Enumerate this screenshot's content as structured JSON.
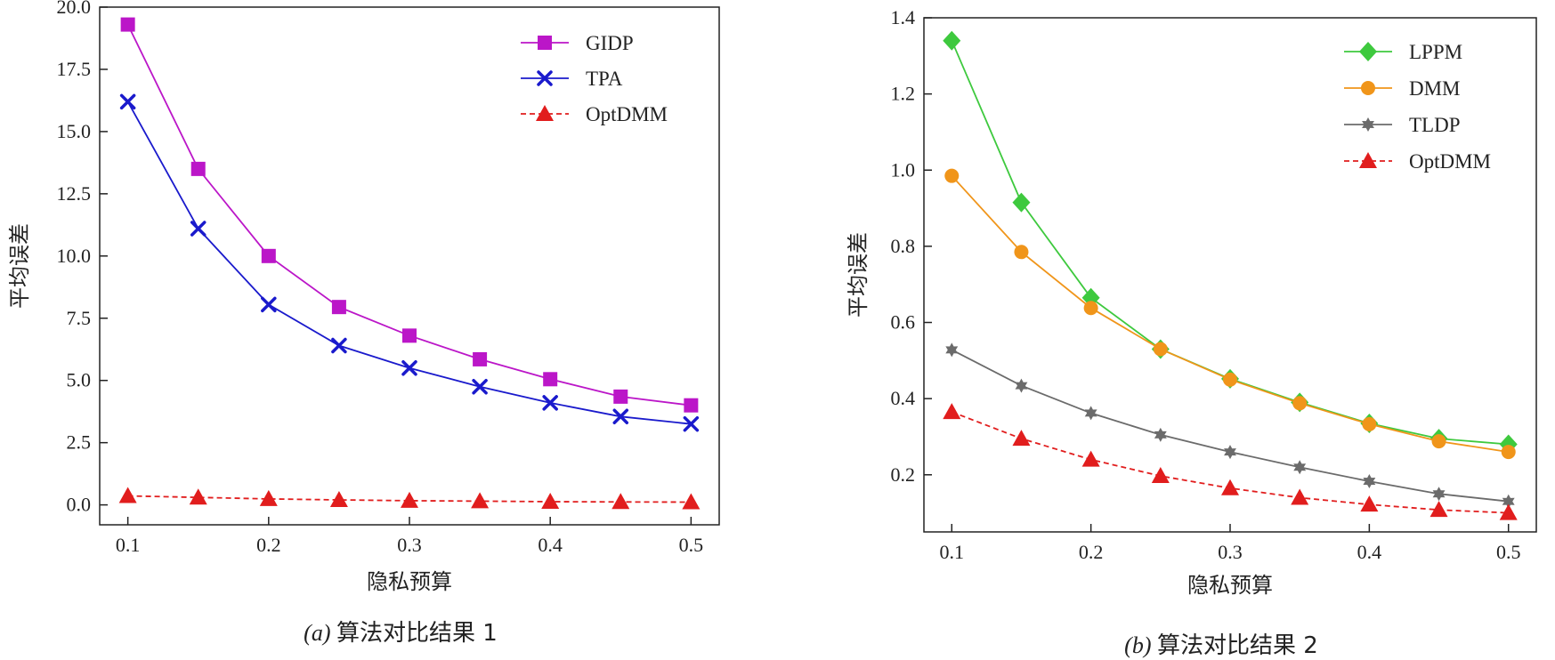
{
  "chart_data": [
    {
      "type": "line",
      "caption_prefix": "(a)",
      "caption_text": "算法对比结果 1",
      "xlabel": "隐私预算",
      "ylabel": "平均误差",
      "x": [
        0.1,
        0.15,
        0.2,
        0.25,
        0.3,
        0.35,
        0.4,
        0.45,
        0.5
      ],
      "xlim": [
        0.08,
        0.52
      ],
      "ylim": [
        -0.8,
        20.0
      ],
      "xticks": [
        0.1,
        0.2,
        0.3,
        0.4,
        0.5
      ],
      "xtick_labels": [
        "0.1",
        "0.2",
        "0.3",
        "0.4",
        "0.5"
      ],
      "yticks": [
        0.0,
        2.5,
        5.0,
        7.5,
        10.0,
        12.5,
        15.0,
        17.5,
        20.0
      ],
      "ytick_labels": [
        "0.0",
        "2.5",
        "5.0",
        "7.5",
        "10.0",
        "12.5",
        "15.0",
        "17.5",
        "20.0"
      ],
      "grid": false,
      "legend_position": "top-right",
      "series": [
        {
          "name": "GIDP",
          "color": "#bb16c8",
          "marker": "square",
          "dash": "solid",
          "values": [
            19.3,
            13.5,
            10.0,
            7.95,
            6.8,
            5.85,
            5.05,
            4.35,
            4.0
          ]
        },
        {
          "name": "TPA",
          "color": "#1a1acc",
          "marker": "x",
          "dash": "solid",
          "values": [
            16.2,
            11.1,
            8.05,
            6.4,
            5.5,
            4.75,
            4.1,
            3.55,
            3.25
          ]
        },
        {
          "name": "OptDMM",
          "color": "#e11d1d",
          "marker": "triangle",
          "dash": "dashed",
          "values": [
            0.36,
            0.3,
            0.24,
            0.2,
            0.17,
            0.15,
            0.13,
            0.12,
            0.11
          ]
        }
      ]
    },
    {
      "type": "line",
      "caption_prefix": "(b)",
      "caption_text": "算法对比结果 2",
      "xlabel": "隐私预算",
      "ylabel": "平均误差",
      "x": [
        0.1,
        0.15,
        0.2,
        0.25,
        0.3,
        0.35,
        0.4,
        0.45,
        0.5
      ],
      "xlim": [
        0.08,
        0.52
      ],
      "ylim": [
        0.05,
        1.4
      ],
      "xticks": [
        0.1,
        0.2,
        0.3,
        0.4,
        0.5
      ],
      "xtick_labels": [
        "0.1",
        "0.2",
        "0.3",
        "0.4",
        "0.5"
      ],
      "yticks": [
        0.2,
        0.4,
        0.6,
        0.8,
        1.0,
        1.2,
        1.4
      ],
      "ytick_labels": [
        "0.2",
        "0.4",
        "0.6",
        "0.8",
        "1.0",
        "1.2",
        "1.4"
      ],
      "grid": false,
      "legend_position": "top-right",
      "series": [
        {
          "name": "LPPM",
          "color": "#3ec93e",
          "marker": "diamond",
          "dash": "solid",
          "values": [
            1.34,
            0.915,
            0.665,
            0.53,
            0.452,
            0.39,
            0.335,
            0.295,
            0.28
          ]
        },
        {
          "name": "DMM",
          "color": "#f0951a",
          "marker": "circle",
          "dash": "solid",
          "values": [
            0.985,
            0.785,
            0.638,
            0.53,
            0.45,
            0.388,
            0.333,
            0.288,
            0.26
          ]
        },
        {
          "name": "TLDP",
          "color": "#6b6b6b",
          "marker": "star",
          "dash": "solid",
          "values": [
            0.528,
            0.434,
            0.362,
            0.305,
            0.26,
            0.22,
            0.183,
            0.15,
            0.13
          ]
        },
        {
          "name": "OptDMM",
          "color": "#e11d1d",
          "marker": "triangle",
          "dash": "dashed",
          "values": [
            0.365,
            0.295,
            0.24,
            0.197,
            0.165,
            0.14,
            0.122,
            0.108,
            0.1
          ]
        }
      ]
    }
  ]
}
